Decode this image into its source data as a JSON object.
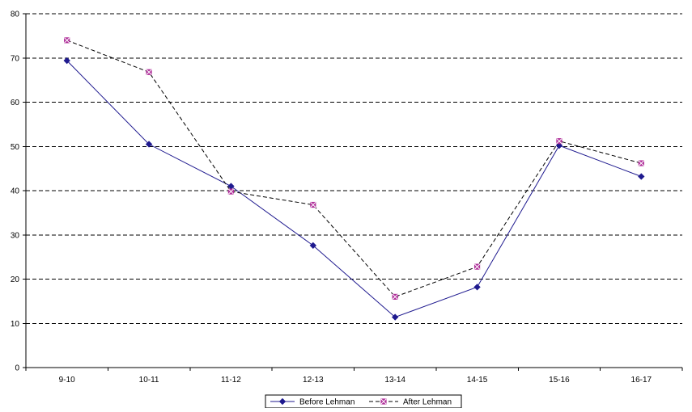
{
  "chart_data": {
    "type": "line",
    "categories": [
      "9-10",
      "10-11",
      "11-12",
      "12-13",
      "13-14",
      "14-15",
      "15-16",
      "16-17"
    ],
    "series": [
      {
        "name": "Before Lehman",
        "values": [
          69.4,
          50.5,
          41.0,
          27.6,
          11.4,
          18.2,
          50.2,
          43.2
        ],
        "color": "#1f1a8f",
        "line_style": "solid",
        "marker": "diamond"
      },
      {
        "name": "After Lehman",
        "values": [
          74.0,
          66.8,
          39.8,
          36.8,
          16.0,
          22.8,
          51.2,
          46.2
        ],
        "color": "#000000",
        "marker_color": "#b0309a",
        "line_style": "dashed",
        "marker": "square-x"
      }
    ],
    "ylim": [
      0,
      80
    ],
    "yticks": [
      0,
      10,
      20,
      30,
      40,
      50,
      60,
      70,
      80
    ],
    "grid": "horizontal dashed",
    "legend_position": "bottom-center",
    "title": "",
    "xlabel": "",
    "ylabel": ""
  }
}
